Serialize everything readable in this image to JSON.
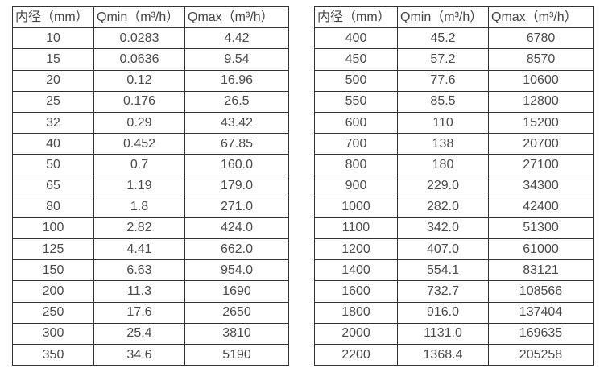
{
  "colors": {
    "background": "#ffffff",
    "border": "#333333",
    "text": "#4a4a4a"
  },
  "tables": [
    {
      "id": "flow-rate-table-small-diameters",
      "headers": [
        "内径（mm）",
        "Qmin（m³/h）",
        "Qmax（m³/h）"
      ],
      "rows": [
        [
          "10",
          "0.0283",
          "4.42"
        ],
        [
          "15",
          "0.0636",
          "9.54"
        ],
        [
          "20",
          "0.12",
          "16.96"
        ],
        [
          "25",
          "0.176",
          "26.5"
        ],
        [
          "32",
          "0.29",
          "43.42"
        ],
        [
          "40",
          "0.452",
          "67.85"
        ],
        [
          "50",
          "0.7",
          "160.0"
        ],
        [
          "65",
          "1.19",
          "179.0"
        ],
        [
          "80",
          "1.8",
          "271.0"
        ],
        [
          "100",
          "2.82",
          "424.0"
        ],
        [
          "125",
          "4.41",
          "662.0"
        ],
        [
          "150",
          "6.63",
          "954.0"
        ],
        [
          "200",
          "11.3",
          "1690"
        ],
        [
          "250",
          "17.6",
          "2650"
        ],
        [
          "300",
          "25.4",
          "3810"
        ],
        [
          "350",
          "34.6",
          "5190"
        ]
      ]
    },
    {
      "id": "flow-rate-table-large-diameters",
      "headers": [
        "内径（mm）",
        "Qmin（m³/h）",
        "Qmax（m³/h）"
      ],
      "rows": [
        [
          "400",
          "45.2",
          "6780"
        ],
        [
          "450",
          "57.2",
          "8570"
        ],
        [
          "500",
          "77.6",
          "10600"
        ],
        [
          "550",
          "85.5",
          "12800"
        ],
        [
          "600",
          "110",
          "15200"
        ],
        [
          "700",
          "138",
          "20700"
        ],
        [
          "800",
          "180",
          "27100"
        ],
        [
          "900",
          "229.0",
          "34300"
        ],
        [
          "1000",
          "282.0",
          "42400"
        ],
        [
          "1100",
          "342.0",
          "51300"
        ],
        [
          "1200",
          "407.0",
          "61000"
        ],
        [
          "1400",
          "554.1",
          "83121"
        ],
        [
          "1600",
          "732.7",
          "108566"
        ],
        [
          "1800",
          "916.0",
          "137404"
        ],
        [
          "2000",
          "1131.0",
          "169635"
        ],
        [
          "2200",
          "1368.4",
          "205258"
        ]
      ]
    }
  ]
}
